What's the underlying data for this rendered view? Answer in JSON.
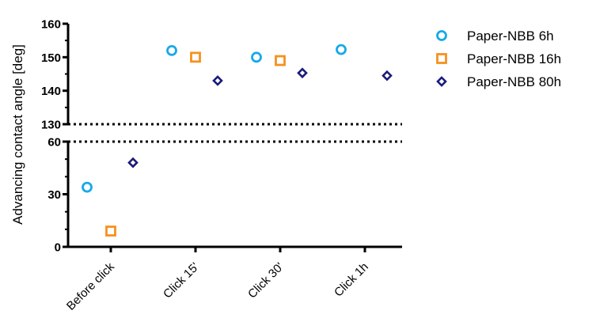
{
  "chart_data": {
    "type": "scatter",
    "title": "",
    "ylabel": "Advancing contact angle [deg]",
    "xlabel": "",
    "categories": [
      "Before click",
      "Click 15'",
      "Click 30'",
      "Click 1h"
    ],
    "y_axis_break": {
      "lower_range": [
        0,
        60
      ],
      "upper_range": [
        130,
        160
      ],
      "lower_ticks": [
        0,
        30,
        60
      ],
      "upper_ticks": [
        130,
        140,
        150,
        160
      ]
    },
    "grid": false,
    "legend_position": "top-right",
    "series": [
      {
        "name": "Paper-NBB 6h",
        "marker": "circle",
        "color": "#17A9E8",
        "values": [
          34,
          152,
          150,
          152.3
        ]
      },
      {
        "name": "Paper-NBB 16h",
        "marker": "square",
        "color": "#F5921E",
        "values": [
          9,
          150,
          149,
          null
        ]
      },
      {
        "name": "Paper-NBB 80h",
        "marker": "diamond",
        "color": "#1B1B7C",
        "values": [
          48,
          143,
          145.3,
          144.5
        ]
      }
    ]
  }
}
